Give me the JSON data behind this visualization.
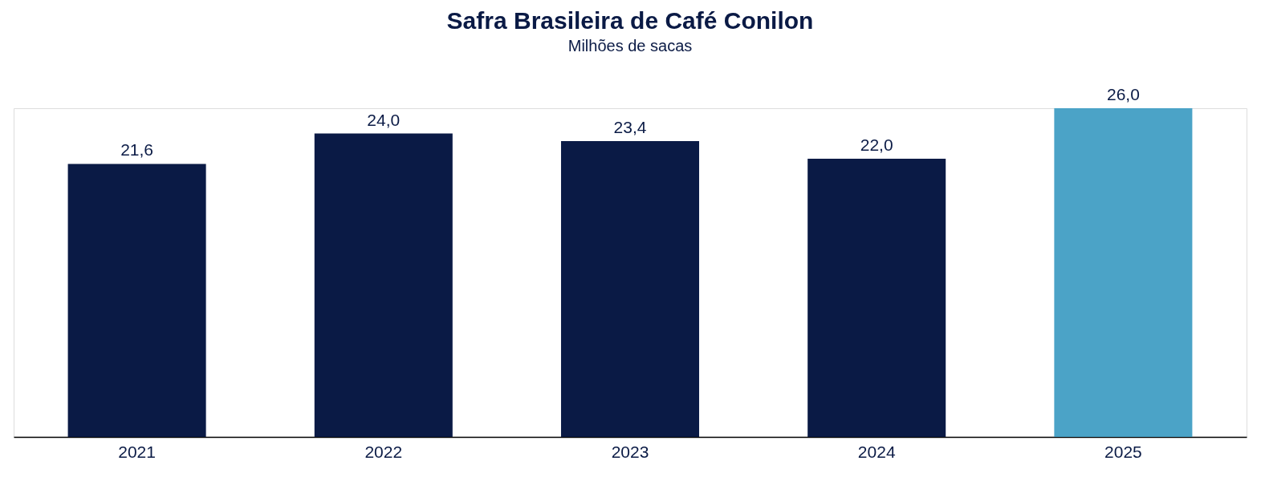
{
  "chart_data": {
    "type": "bar",
    "title": "Safra Brasileira de Café Conilon",
    "subtitle": "Milhões de sacas",
    "categories": [
      "2021",
      "2022",
      "2023",
      "2024",
      "2025"
    ],
    "values": [
      21.6,
      24.0,
      23.4,
      22.0,
      26.0
    ],
    "value_labels": [
      "21,6",
      "24,0",
      "23,4",
      "22,0",
      "26,0"
    ],
    "colors": [
      "#0a1a45",
      "#0a1a45",
      "#0a1a45",
      "#0a1a45",
      "#4ba3c7"
    ],
    "grid": false
  }
}
